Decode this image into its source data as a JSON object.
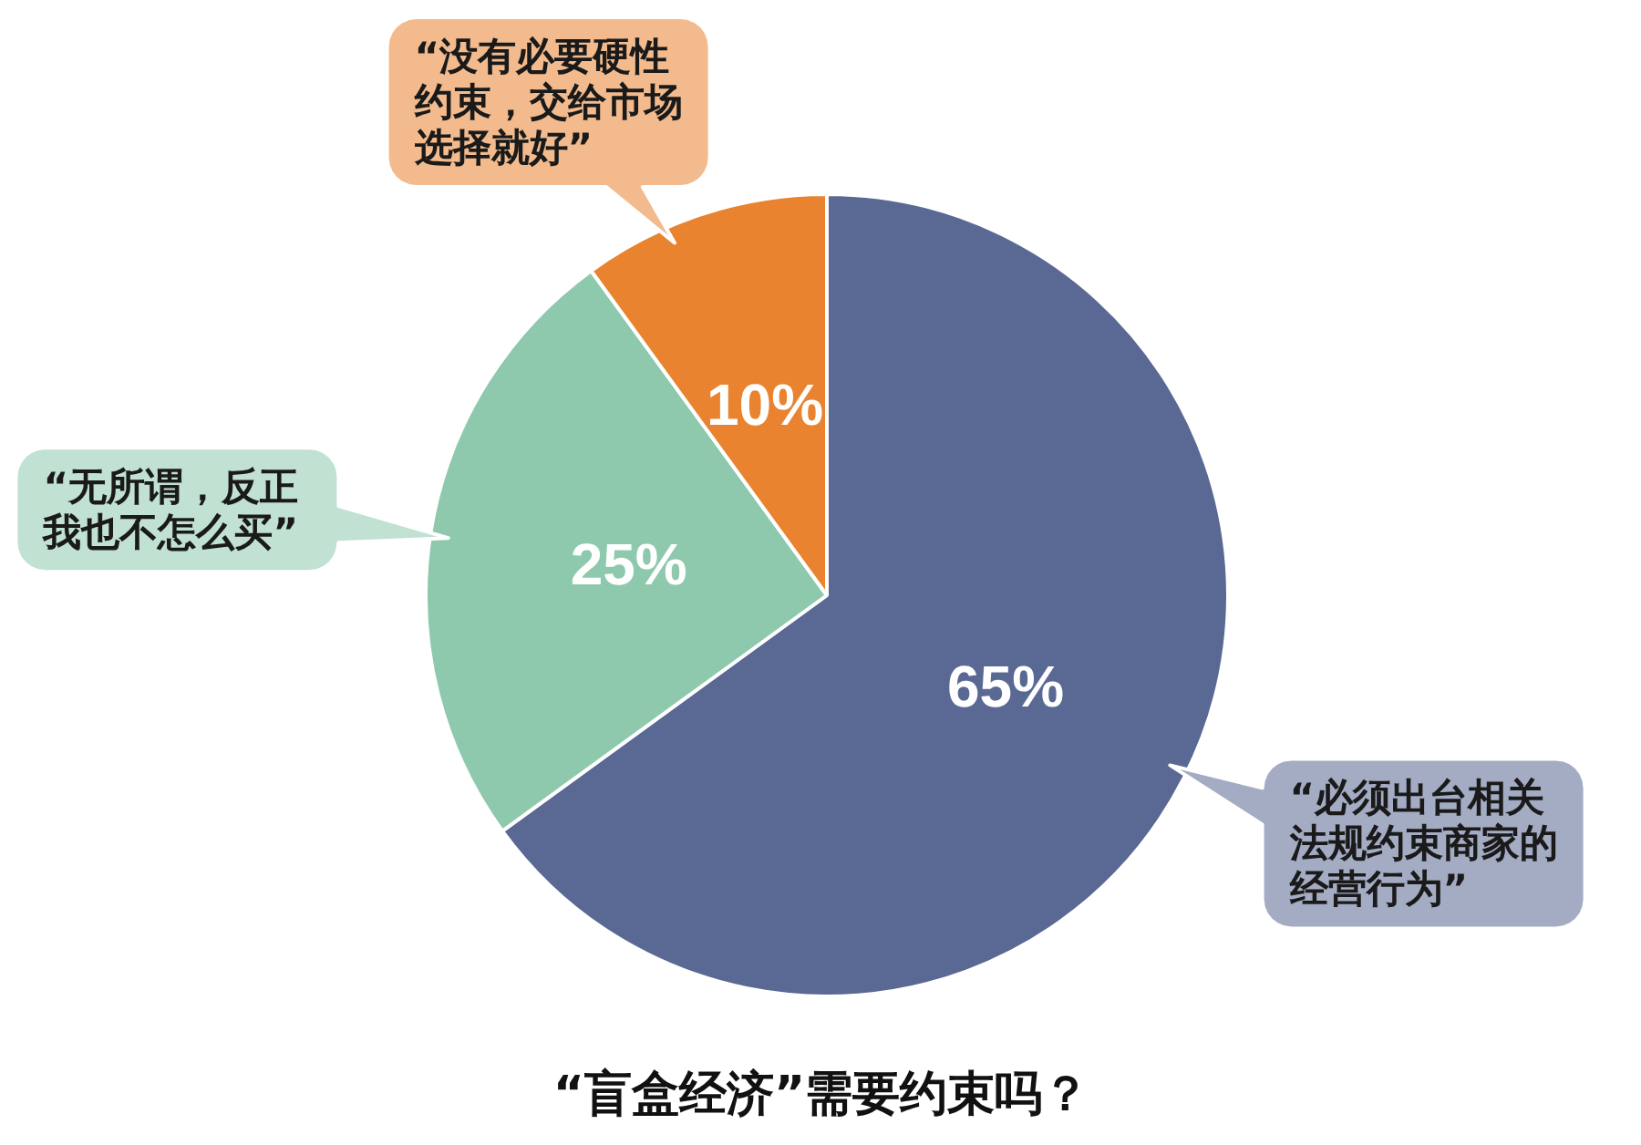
{
  "chart_data": {
    "type": "pie",
    "title": "“盲盒经济”需要约束吗？",
    "categories": [
      "“必须出台相关法规约束商家的经营行为”",
      "“无所谓，反正我也不怎么买”",
      "“没有必要硬性约束，交给市场选择就好”"
    ],
    "values": [
      65,
      25,
      10
    ],
    "colors": [
      "#5a6994",
      "#8ec9ae",
      "#e9832f"
    ],
    "value_labels": [
      "65%",
      "25%",
      "10%"
    ]
  }
}
